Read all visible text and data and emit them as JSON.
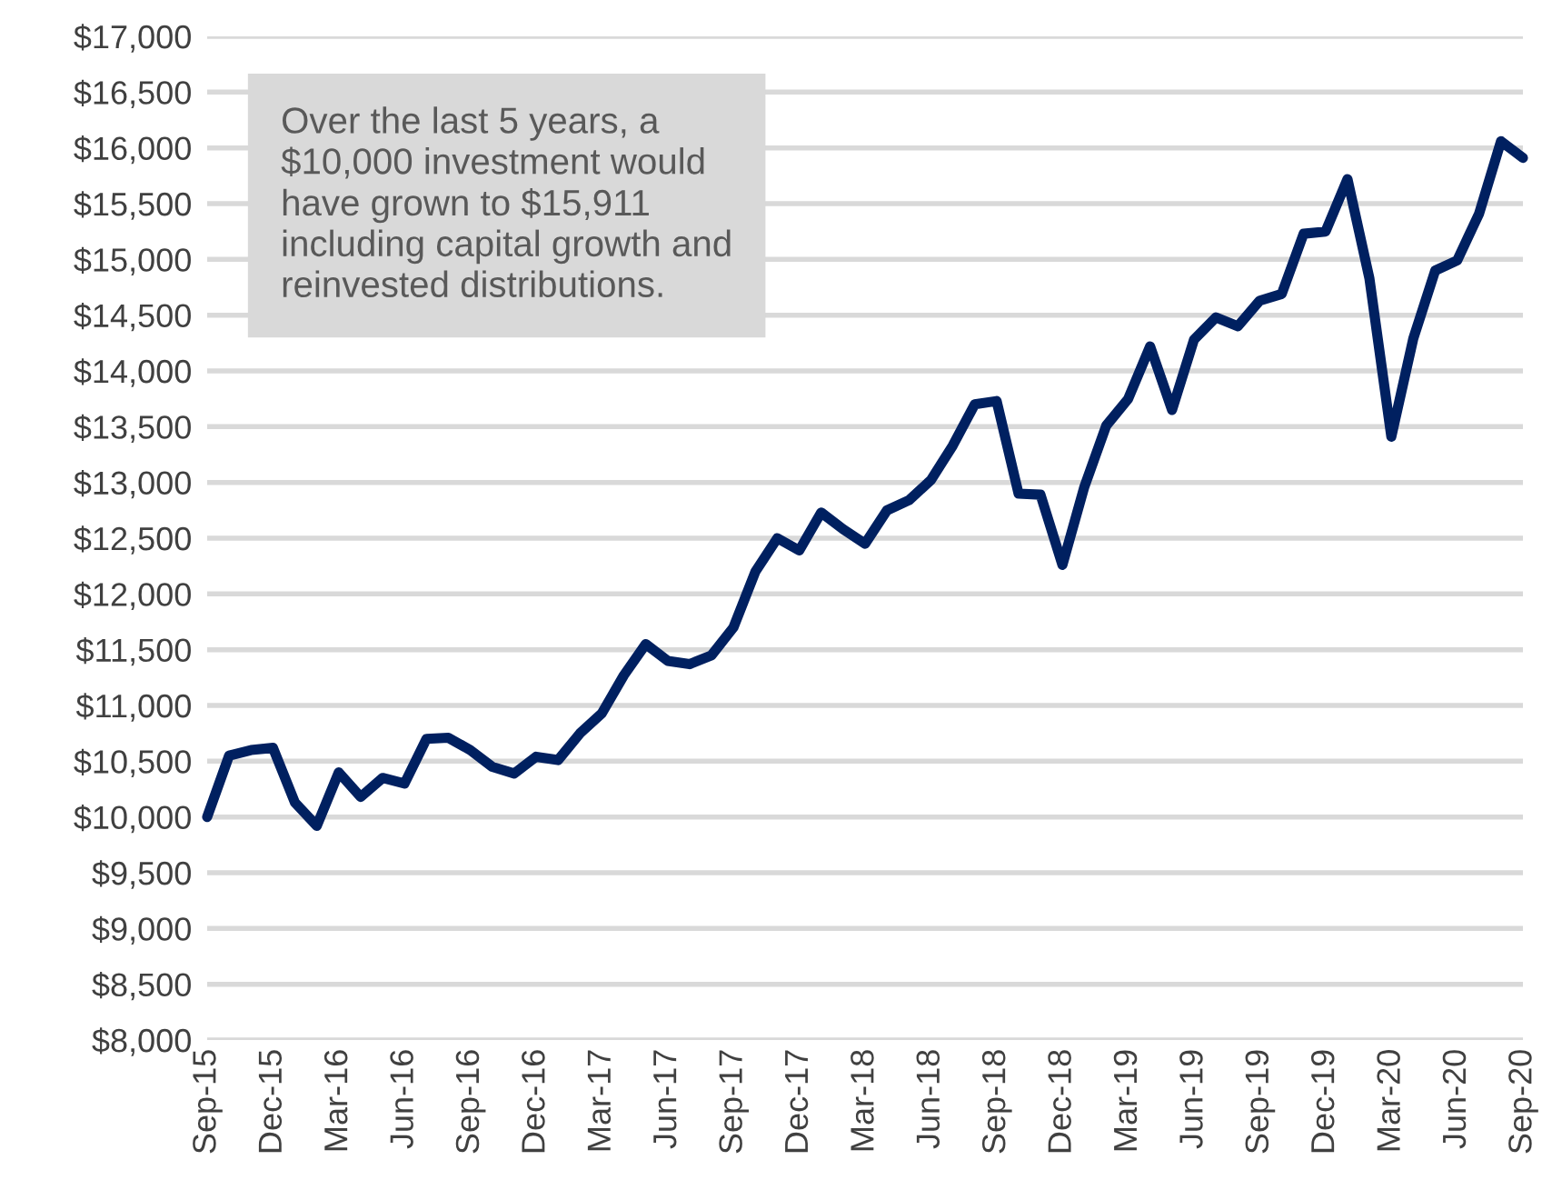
{
  "chart_data": {
    "type": "line",
    "categories": [
      "Sep-15",
      null,
      null,
      "Dec-15",
      null,
      null,
      "Mar-16",
      null,
      null,
      "Jun-16",
      null,
      null,
      "Sep-16",
      null,
      null,
      "Dec-16",
      null,
      null,
      "Mar-17",
      null,
      null,
      "Jun-17",
      null,
      null,
      "Sep-17",
      null,
      null,
      "Dec-17",
      null,
      null,
      "Mar-18",
      null,
      null,
      "Jun-18",
      null,
      null,
      "Sep-18",
      null,
      null,
      "Dec-18",
      null,
      null,
      "Mar-19",
      null,
      null,
      "Jun-19",
      null,
      null,
      "Sep-19",
      null,
      null,
      "Dec-19",
      null,
      null,
      "Mar-20",
      null,
      null,
      "Jun-20",
      null,
      null,
      "Sep-20"
    ],
    "series": [
      {
        "color": "#002060",
        "values": [
          10000,
          10550,
          10600,
          10620,
          10130,
          9920,
          10400,
          10180,
          10350,
          10300,
          10700,
          10710,
          10600,
          10450,
          10390,
          10540,
          10510,
          10750,
          10930,
          11270,
          11550,
          11400,
          11370,
          11450,
          11700,
          12200,
          12500,
          12390,
          12730,
          12580,
          12450,
          12750,
          12840,
          13020,
          13330,
          13700,
          13730,
          12900,
          12890,
          12260,
          12960,
          13510,
          13750,
          14220,
          13650,
          14280,
          14480,
          14400,
          14630,
          14690,
          15230,
          15250,
          15720,
          14830,
          13410,
          14290,
          14900,
          14990,
          15410,
          16060,
          15910
        ]
      }
    ],
    "ylim": [
      8000,
      17000
    ],
    "yticks": [
      {
        "value": 8000,
        "label": "$8,000"
      },
      {
        "value": 8500,
        "label": "$8,500"
      },
      {
        "value": 9000,
        "label": "$9,000"
      },
      {
        "value": 9500,
        "label": "$9,500"
      },
      {
        "value": 10000,
        "label": "$10,000"
      },
      {
        "value": 10500,
        "label": "$10,500"
      },
      {
        "value": 11000,
        "label": "$11,000"
      },
      {
        "value": 11500,
        "label": "$11,500"
      },
      {
        "value": 12000,
        "label": "$12,000"
      },
      {
        "value": 12500,
        "label": "$12,500"
      },
      {
        "value": 13000,
        "label": "$13,000"
      },
      {
        "value": 13500,
        "label": "$13,500"
      },
      {
        "value": 14000,
        "label": "$14,000"
      },
      {
        "value": 14500,
        "label": "$14,500"
      },
      {
        "value": 15000,
        "label": "$15,000"
      },
      {
        "value": 15500,
        "label": "$15,500"
      },
      {
        "value": 16000,
        "label": "$16,000"
      },
      {
        "value": 16500,
        "label": "$16,500"
      },
      {
        "value": 17000,
        "label": "$17,000"
      }
    ],
    "grid": "y",
    "marker": "none",
    "line_style": "solid",
    "annotations": [
      "Over the last 5 years, a\n$10,000 investment would\nhave grown to $15,911\nincluding capital growth and\nreinvested distributions."
    ]
  }
}
